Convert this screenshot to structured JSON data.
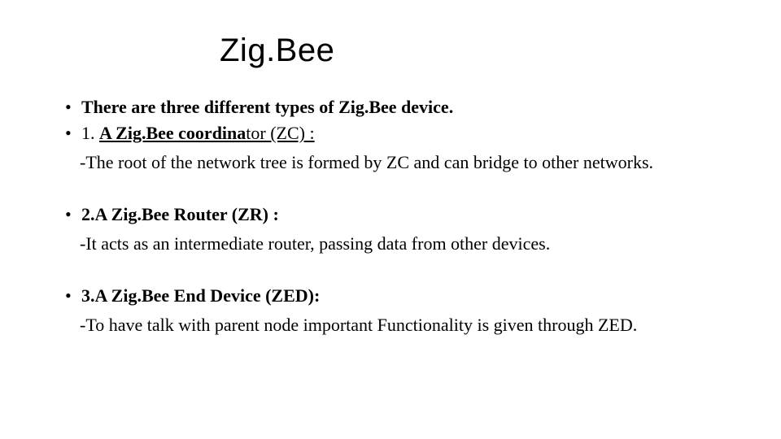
{
  "colors": {
    "background": "#ffffff",
    "text": "#000000"
  },
  "typography": {
    "title_font": "Segoe UI Light",
    "body_font": "Times New Roman",
    "title_fontsize_pt": 30,
    "body_fontsize_pt": 17,
    "title_weight": 300,
    "bold_weight": 700
  },
  "slide": {
    "title": "Zig.Bee",
    "intro": "There are three different types of Zig.Bee device.",
    "items": [
      {
        "num": "1. ",
        "bold_text": "A Zig.Bee coordina",
        "tail_text": "tor (ZC) :",
        "underline_bold_and_tail": true,
        "sub": "-The root of the network tree is formed by ZC and can bridge to other networks."
      },
      {
        "num": "2.",
        "bold_text": "A Zig.Bee Router (ZR) :",
        "tail_text": "",
        "underline_bold_and_tail": false,
        "sub": "-It acts as an intermediate router, passing data from other devices."
      },
      {
        "num": "3.",
        "bold_text": "A Zig.Bee End Device (ZED):",
        "tail_text": "",
        "underline_bold_and_tail": false,
        "sub": "-To have talk with parent node important Functionality is given through ZED."
      }
    ]
  }
}
